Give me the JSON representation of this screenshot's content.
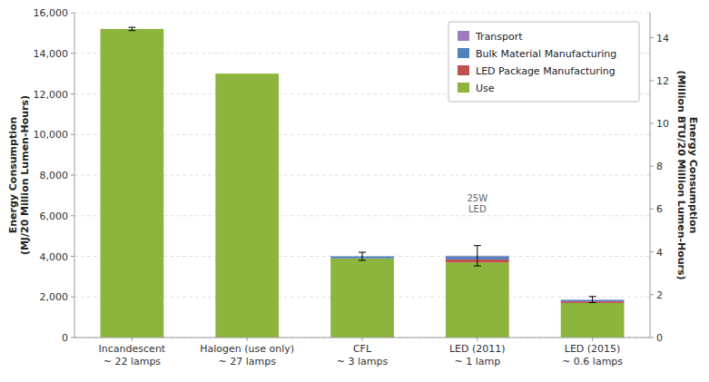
{
  "chart_data": {
    "type": "bar",
    "stacked": true,
    "grid": true,
    "legend": "upper right",
    "categories": [
      "Incandescent\n~ 22 lamps",
      "Halogen (use only)\n~ 27 lamps",
      "CFL\n~ 3 lamps",
      "LED (2011)\n~ 1 lamp",
      "LED (2015)\n~ 0.6 lamps"
    ],
    "series": [
      {
        "name": "Use",
        "color": "#8db53d",
        "values": [
          15200,
          13000,
          3900,
          3700,
          1700
        ]
      },
      {
        "name": "LED Package Manufacturing",
        "color": "#c0504d",
        "values": [
          0,
          0,
          0,
          150,
          80
        ]
      },
      {
        "name": "Bulk Material Manufacturing",
        "color": "#4f81bd",
        "values": [
          0,
          0,
          100,
          150,
          70
        ]
      },
      {
        "name": "Transport",
        "color": "#9e7bbf",
        "values": [
          0,
          0,
          0,
          30,
          20
        ]
      }
    ],
    "error_bars": [
      80,
      0,
      200,
      500,
      150
    ],
    "y_label": "Energy Consumption\n(MJ/20 Million Lumen-Hours)",
    "y2_label": "Energy Consumption\n(Million BTU/20 Million Lumen-Hours)",
    "ylim": [
      0,
      16000
    ],
    "yticks": [
      0,
      {
        "value": 2000,
        "label": "2,000"
      },
      {
        "value": 4000,
        "label": "4,000"
      },
      {
        "value": 6000,
        "label": "6,000"
      },
      {
        "value": 8000,
        "label": "8,000"
      },
      {
        "value": 10000,
        "label": "10,000"
      },
      {
        "value": 12000,
        "label": "12,000"
      },
      {
        "value": 14000,
        "label": "14,000"
      },
      {
        "value": 16000,
        "label": "16,000"
      }
    ],
    "y2lim": [
      0,
      15.17
    ],
    "y2ticks": [
      0,
      2,
      4,
      6,
      8,
      10,
      12,
      14
    ],
    "annotations": [
      "25W\nLED"
    ]
  }
}
